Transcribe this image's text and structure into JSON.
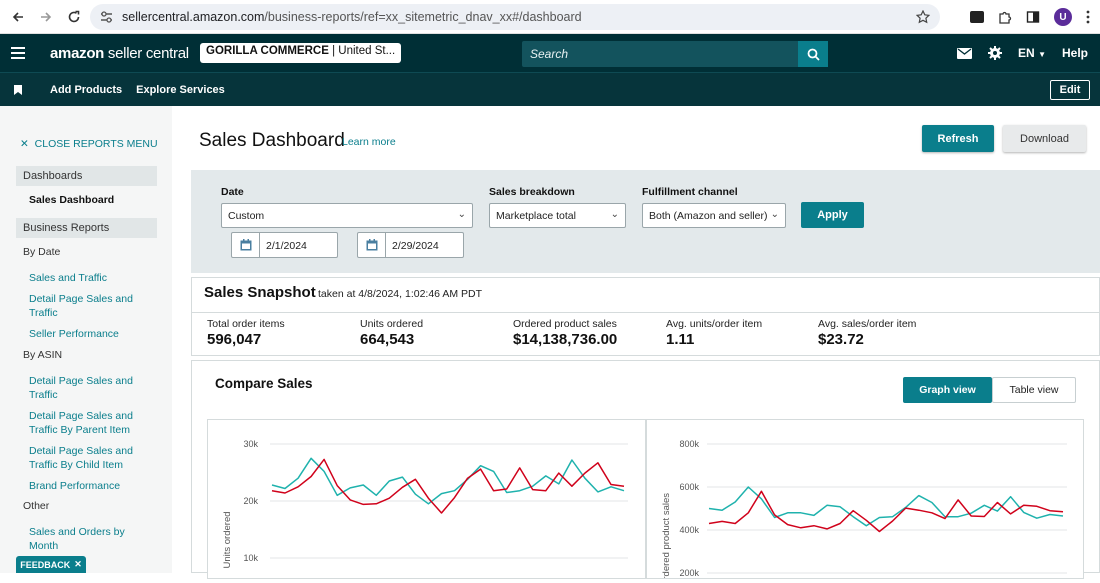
{
  "browser": {
    "url_host": "sellercentral.amazon.com",
    "url_path": "/business-reports/ref=xx_sitemetric_dnav_xx#/dashboard",
    "avatar_letter": "U"
  },
  "topnav": {
    "logo_bold": "amazon",
    "logo_rest": " seller central",
    "account_name": "GORILLA COMMERCE",
    "account_region": "United St...",
    "search_placeholder": "Search",
    "language": "EN",
    "help": "Help"
  },
  "subnav": {
    "links": [
      "Add Products",
      "Explore Services"
    ],
    "edit": "Edit"
  },
  "sidebar": {
    "close_menu": "CLOSE REPORTS MENU",
    "dashboards_header": "Dashboards",
    "dashboards_active": "Sales Dashboard",
    "business_header": "Business Reports",
    "by_date_label": "By Date",
    "by_date_links": [
      "Sales and Traffic",
      "Detail Page Sales and Traffic",
      "Seller Performance"
    ],
    "by_asin_label": "By ASIN",
    "by_asin_links": [
      "Detail Page Sales and Traffic",
      "Detail Page Sales and Traffic By Parent Item",
      "Detail Page Sales and Traffic By Child Item",
      "Brand Performance"
    ],
    "other_label": "Other",
    "other_links": [
      "Sales and Orders by Month"
    ],
    "feedback": "FEEDBACK"
  },
  "main": {
    "title": "Sales Dashboard",
    "learn_more": "Learn more",
    "refresh": "Refresh",
    "download": "Download"
  },
  "filters": {
    "date_label": "Date",
    "date_value": "Custom",
    "start_date": "2/1/2024",
    "end_date": "2/29/2024",
    "breakdown_label": "Sales breakdown",
    "breakdown_value": "Marketplace total",
    "fulfillment_label": "Fulfillment channel",
    "fulfillment_value": "Both (Amazon and seller)",
    "apply": "Apply"
  },
  "snapshot": {
    "title": "Sales Snapshot",
    "taken_at": "taken at 4/8/2024, 1:02:46 AM PDT",
    "metrics": [
      {
        "label": "Total order items",
        "value": "596,047"
      },
      {
        "label": "Units ordered",
        "value": "664,543"
      },
      {
        "label": "Ordered product sales",
        "value": "$14,138,736.00"
      },
      {
        "label": "Avg. units/order item",
        "value": "1.11"
      },
      {
        "label": "Avg. sales/order item",
        "value": "$23.72"
      }
    ]
  },
  "compare": {
    "title": "Compare Sales",
    "graph_view": "Graph view",
    "table_view": "Table view"
  },
  "colors": {
    "teal": "#0a7e8c",
    "red_series": "#d0021b",
    "teal_series": "#1fb2ad",
    "nav_bg": "#002f36"
  },
  "chart_data": [
    {
      "type": "line",
      "ylabel": "Units ordered",
      "ylim": [
        10000,
        30000
      ],
      "yticks": [
        "30k",
        "20k",
        "10k"
      ],
      "ytick_values": [
        30000,
        20000,
        10000
      ],
      "series": [
        {
          "color": "#1fb2ad",
          "values": [
            22800,
            22200,
            24000,
            27500,
            25200,
            21000,
            22300,
            22800,
            21000,
            23500,
            24200,
            21200,
            19500,
            21300,
            21800,
            23800,
            26200,
            25200,
            21500,
            21800,
            22600,
            24400,
            23000,
            27200,
            24000,
            21600,
            22500,
            21800
          ]
        },
        {
          "color": "#d0021b",
          "values": [
            21800,
            21400,
            22500,
            24300,
            27300,
            22700,
            20200,
            19400,
            19500,
            20500,
            22400,
            23800,
            20500,
            17900,
            20600,
            24000,
            25600,
            21800,
            22100,
            25800,
            22000,
            21800,
            24900,
            22600,
            24900,
            26700,
            22900,
            22600
          ]
        }
      ]
    },
    {
      "type": "line",
      "ylabel": "Ordered product sales",
      "ylim": [
        200000,
        800000
      ],
      "yticks": [
        "800k",
        "600k",
        "400k",
        "200k"
      ],
      "ytick_values": [
        800000,
        600000,
        400000,
        200000
      ],
      "series": [
        {
          "color": "#1fb2ad",
          "values": [
            500000,
            492000,
            530000,
            600000,
            545000,
            458000,
            480000,
            480000,
            468000,
            515000,
            508000,
            462000,
            420000,
            458000,
            462000,
            505000,
            560000,
            528000,
            462000,
            462000,
            478000,
            515000,
            488000,
            555000,
            482000,
            455000,
            472000,
            465000
          ]
        },
        {
          "color": "#d0021b",
          "values": [
            430000,
            440000,
            430000,
            480000,
            580000,
            470000,
            425000,
            410000,
            420000,
            405000,
            430000,
            490000,
            445000,
            393000,
            442000,
            502000,
            492000,
            480000,
            453000,
            540000,
            465000,
            463000,
            528000,
            475000,
            515000,
            510000,
            490000,
            485000
          ]
        }
      ]
    }
  ]
}
